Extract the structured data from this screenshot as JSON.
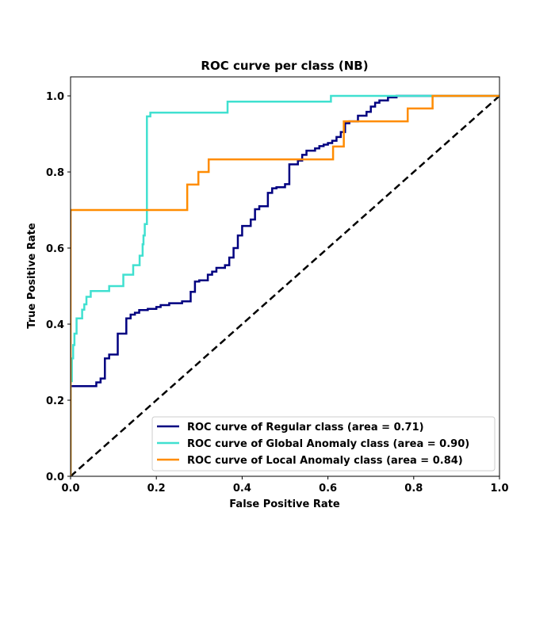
{
  "chart_data": {
    "type": "line",
    "title": "ROC curve per class (NB)",
    "xlabel": "False Positive Rate",
    "ylabel": "True Positive Rate",
    "xlim": [
      0.0,
      1.0
    ],
    "ylim": [
      0.0,
      1.05
    ],
    "xticks": [
      {
        "value": 0.0,
        "label": "0.0"
      },
      {
        "value": 0.2,
        "label": "0.2"
      },
      {
        "value": 0.4,
        "label": "0.4"
      },
      {
        "value": 0.6,
        "label": "0.6"
      },
      {
        "value": 0.8,
        "label": "0.8"
      },
      {
        "value": 1.0,
        "label": "1.0"
      }
    ],
    "yticks": [
      {
        "value": 0.0,
        "label": "0.0"
      },
      {
        "value": 0.2,
        "label": "0.2"
      },
      {
        "value": 0.4,
        "label": "0.4"
      },
      {
        "value": 0.6,
        "label": "0.6"
      },
      {
        "value": 0.8,
        "label": "0.8"
      },
      {
        "value": 1.0,
        "label": "1.0"
      }
    ],
    "grid": false,
    "legend_position": "lower-right",
    "reference_line": {
      "name": "chance",
      "color": "#000000",
      "dashed": true,
      "x": [
        0.0,
        1.0
      ],
      "y": [
        0.0,
        1.0
      ]
    },
    "series": [
      {
        "name": "ROC curve of Regular class (area = 0.71)",
        "color": "#000080",
        "step": true,
        "x": [
          0.0,
          0.0,
          0.06,
          0.06,
          0.07,
          0.07,
          0.08,
          0.08,
          0.09,
          0.09,
          0.11,
          0.11,
          0.13,
          0.13,
          0.14,
          0.14,
          0.15,
          0.15,
          0.16,
          0.16,
          0.18,
          0.18,
          0.2,
          0.2,
          0.21,
          0.21,
          0.23,
          0.23,
          0.26,
          0.26,
          0.28,
          0.28,
          0.29,
          0.29,
          0.3,
          0.3,
          0.32,
          0.32,
          0.33,
          0.33,
          0.34,
          0.34,
          0.36,
          0.36,
          0.37,
          0.37,
          0.38,
          0.38,
          0.39,
          0.39,
          0.4,
          0.4,
          0.42,
          0.42,
          0.43,
          0.43,
          0.44,
          0.44,
          0.46,
          0.46,
          0.47,
          0.47,
          0.48,
          0.48,
          0.5,
          0.5,
          0.51,
          0.51,
          0.53,
          0.53,
          0.54,
          0.54,
          0.55,
          0.55,
          0.57,
          0.57,
          0.58,
          0.58,
          0.59,
          0.59,
          0.6,
          0.6,
          0.61,
          0.61,
          0.62,
          0.62,
          0.63,
          0.63,
          0.64,
          0.64,
          0.65,
          0.65,
          0.67,
          0.67,
          0.69,
          0.69,
          0.7,
          0.7,
          0.71,
          0.71,
          0.72,
          0.72,
          0.74,
          0.74,
          0.76,
          0.76,
          1.0
        ],
        "y": [
          0.0,
          0.237,
          0.237,
          0.247,
          0.247,
          0.257,
          0.257,
          0.31,
          0.31,
          0.32,
          0.32,
          0.375,
          0.375,
          0.415,
          0.415,
          0.425,
          0.425,
          0.43,
          0.43,
          0.437,
          0.437,
          0.44,
          0.44,
          0.445,
          0.445,
          0.45,
          0.45,
          0.455,
          0.455,
          0.46,
          0.46,
          0.485,
          0.485,
          0.512,
          0.512,
          0.515,
          0.515,
          0.53,
          0.53,
          0.538,
          0.538,
          0.548,
          0.548,
          0.555,
          0.555,
          0.575,
          0.575,
          0.6,
          0.6,
          0.633,
          0.633,
          0.658,
          0.658,
          0.675,
          0.675,
          0.702,
          0.702,
          0.71,
          0.71,
          0.745,
          0.745,
          0.757,
          0.757,
          0.76,
          0.76,
          0.768,
          0.768,
          0.82,
          0.82,
          0.83,
          0.83,
          0.845,
          0.845,
          0.856,
          0.856,
          0.862,
          0.862,
          0.868,
          0.868,
          0.872,
          0.872,
          0.876,
          0.876,
          0.882,
          0.882,
          0.892,
          0.892,
          0.905,
          0.905,
          0.928,
          0.928,
          0.933,
          0.933,
          0.948,
          0.948,
          0.958,
          0.958,
          0.972,
          0.972,
          0.982,
          0.982,
          0.988,
          0.988,
          0.996,
          0.996,
          1.0,
          1.0
        ]
      },
      {
        "name": "ROC curve of Global Anomaly class (area = 0.90)",
        "color": "#40e0d0",
        "step": true,
        "x": [
          0.0,
          0.0,
          0.003,
          0.003,
          0.006,
          0.006,
          0.009,
          0.009,
          0.014,
          0.014,
          0.027,
          0.027,
          0.032,
          0.032,
          0.037,
          0.037,
          0.047,
          0.047,
          0.09,
          0.09,
          0.123,
          0.123,
          0.146,
          0.146,
          0.161,
          0.161,
          0.168,
          0.168,
          0.17,
          0.17,
          0.173,
          0.173,
          0.178,
          0.178,
          0.186,
          0.186,
          0.366,
          0.366,
          0.607,
          0.607,
          1.0
        ],
        "y": [
          0.0,
          0.25,
          0.25,
          0.31,
          0.31,
          0.345,
          0.345,
          0.375,
          0.375,
          0.415,
          0.415,
          0.438,
          0.438,
          0.452,
          0.452,
          0.472,
          0.472,
          0.487,
          0.487,
          0.5,
          0.5,
          0.53,
          0.53,
          0.555,
          0.555,
          0.58,
          0.58,
          0.61,
          0.61,
          0.633,
          0.633,
          0.663,
          0.663,
          0.946,
          0.946,
          0.956,
          0.956,
          0.985,
          0.985,
          1.0,
          1.0
        ]
      },
      {
        "name": "ROC curve of Local Anomaly class (area = 0.84)",
        "color": "#ff8c00",
        "step": true,
        "x": [
          0.0,
          0.0,
          0.272,
          0.272,
          0.298,
          0.298,
          0.322,
          0.322,
          0.612,
          0.612,
          0.637,
          0.637,
          0.786,
          0.786,
          0.844,
          0.844,
          1.0
        ],
        "y": [
          0.0,
          0.7,
          0.7,
          0.767,
          0.767,
          0.8,
          0.8,
          0.833,
          0.833,
          0.867,
          0.867,
          0.933,
          0.933,
          0.967,
          0.967,
          1.0,
          1.0
        ]
      }
    ]
  }
}
